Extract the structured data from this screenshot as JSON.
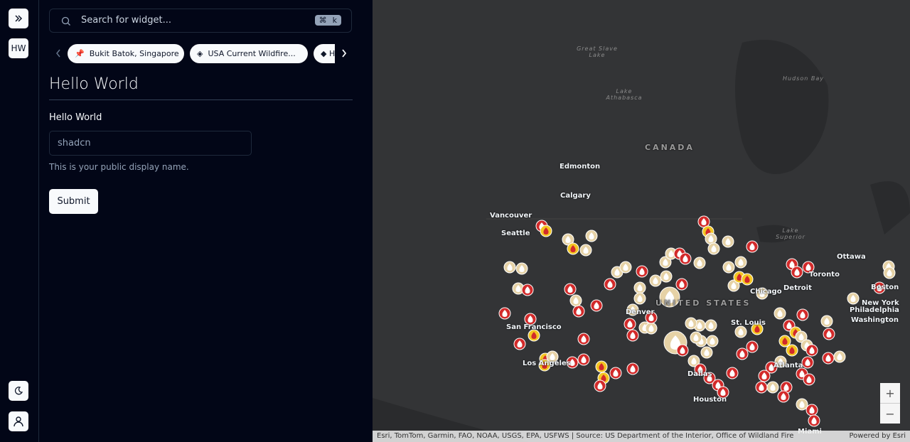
{
  "sidebar": {
    "avatar": "HW"
  },
  "panel": {
    "search_placeholder": "Search for widget...",
    "shortcut": [
      "⌘",
      "k"
    ],
    "chips": [
      "Bukit Batok, Singapore",
      "USA Current Wildfire...",
      "H"
    ],
    "heading": "Hello World",
    "field_label": "Hello World",
    "field_value": "shadcn",
    "field_description": "This is your public display name.",
    "submit": "Submit"
  },
  "map": {
    "labels": [
      "Great Slave Lake",
      "Lake Athabasca",
      "Hudson Bay",
      "CANADA",
      "Edmonton",
      "Calgary",
      "Vancouver",
      "Seattle",
      "Lake Superior",
      "Ottawa",
      "Toronto",
      "Detroit",
      "Chicago",
      "UNITED STATES",
      "Denver",
      "San Francisco",
      "Los Angeles",
      "St. Louis",
      "New York",
      "Philadelphia",
      "Washington",
      "Boston",
      "Atlanta",
      "Dallas",
      "Houston",
      "Miami"
    ],
    "zoom_in": "+",
    "zoom_out": "−",
    "attribution": "Esri, TomTom, Garmin, FAO, NOAA, USGS, EPA, USFWS | Source: US Department of the Interior, Office of Wildland Fire",
    "powered_by": "Powered by Esri"
  }
}
